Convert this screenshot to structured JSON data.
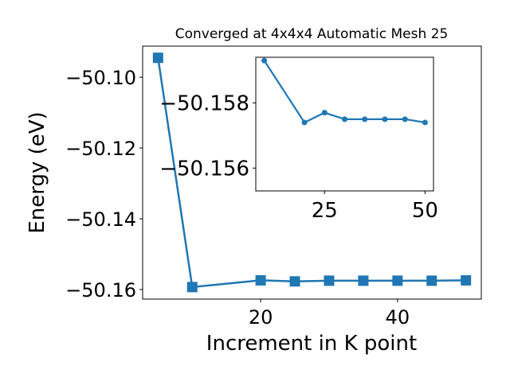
{
  "chart_data": [
    {
      "type": "line",
      "title": "Converged at 4x4x4 Automatic Mesh 25",
      "xlabel": "Increment in K point",
      "ylabel": "Energy (eV)",
      "x": [
        5,
        10,
        20,
        25,
        30,
        35,
        40,
        45,
        50
      ],
      "series": [
        {
          "values": [
            -50.0945,
            -50.1593,
            -50.1574,
            -50.1577,
            -50.1575,
            -50.1575,
            -50.1575,
            -50.1575,
            -50.1574
          ],
          "color": "#1f77b4",
          "marker": "square"
        }
      ],
      "xlim": [
        2.75,
        52.25
      ],
      "ylim": [
        -50.1627,
        -50.0912
      ],
      "xticks": [
        20,
        40
      ],
      "xtick_labels": [
        "20",
        "40"
      ],
      "yticks": [
        -50.1,
        -50.12,
        -50.14,
        -50.16
      ],
      "ytick_labels": [
        "−50.10",
        "−50.12",
        "−50.14",
        "−50.16"
      ],
      "grid": false
    },
    {
      "type": "line",
      "title": "",
      "xlabel": "",
      "ylabel": "",
      "inset": true,
      "x": [
        10,
        20,
        25,
        30,
        35,
        40,
        45,
        50
      ],
      "series": [
        {
          "values": [
            -50.1593,
            -50.1574,
            -50.1577,
            -50.1575,
            -50.1575,
            -50.1575,
            -50.1575,
            -50.1574
          ],
          "color": "#1f77b4",
          "marker": "circle"
        }
      ],
      "xlim": [
        7.9,
        52.1
      ],
      "ylim": [
        -50.1553,
        -50.1594
      ],
      "y_inverted": true,
      "xticks": [
        25,
        50
      ],
      "xtick_labels": [
        "25",
        "50"
      ],
      "yticks": [
        -50.158,
        -50.156
      ],
      "ytick_labels": [
        "−50.158",
        "−50.156"
      ],
      "grid": false
    }
  ]
}
